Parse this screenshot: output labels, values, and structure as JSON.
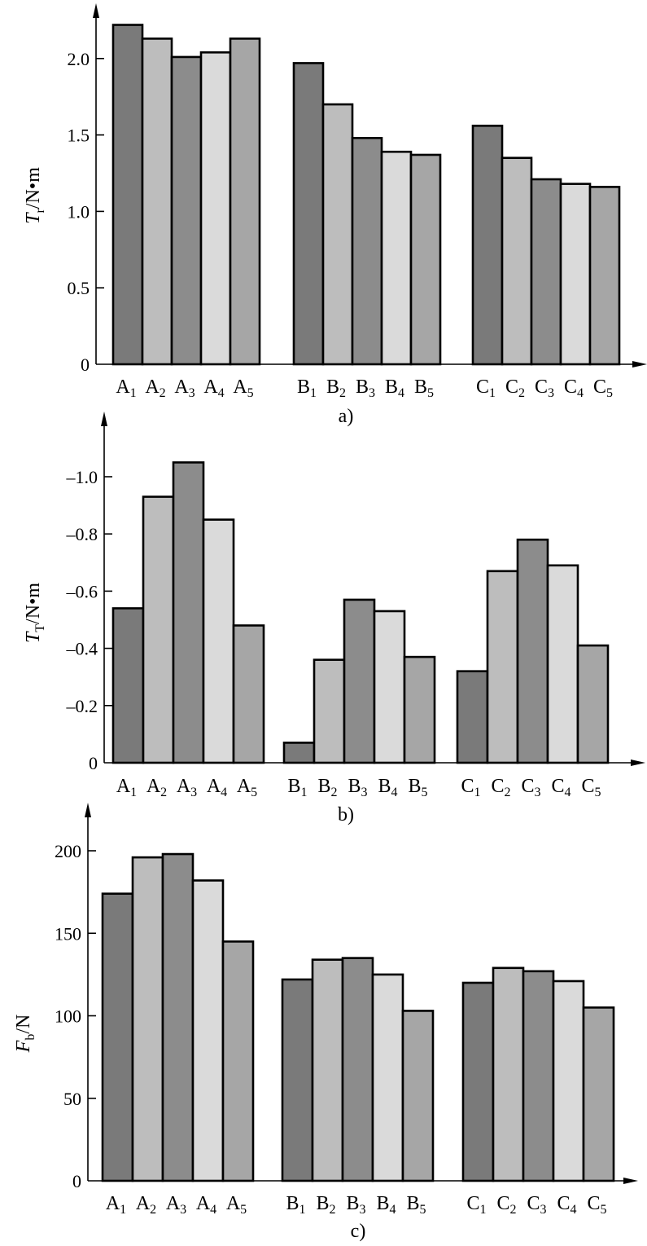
{
  "colors": {
    "bar_fills": [
      "#7a7a7a",
      "#bdbdbd",
      "#8c8c8c",
      "#dadada",
      "#a6a6a6"
    ]
  },
  "chart_data": [
    {
      "type": "bar",
      "panel_label": "a)",
      "ylabel": {
        "symbol": "T",
        "subscript": "r",
        "unit": "/N•m"
      },
      "ylim": [
        0,
        2.25
      ],
      "yticks": [
        0,
        0.5,
        1.0,
        1.5,
        2.0
      ],
      "ytick_labels": [
        "0",
        "0.5",
        "1.0",
        "1.5",
        "2.0"
      ],
      "grid": false,
      "groups": [
        {
          "categories": [
            {
              "letter": "A",
              "sub": "1"
            },
            {
              "letter": "A",
              "sub": "2"
            },
            {
              "letter": "A",
              "sub": "3"
            },
            {
              "letter": "A",
              "sub": "4"
            },
            {
              "letter": "A",
              "sub": "5"
            }
          ],
          "values": [
            2.22,
            2.13,
            2.01,
            2.04,
            2.13
          ]
        },
        {
          "categories": [
            {
              "letter": "B",
              "sub": "1"
            },
            {
              "letter": "B",
              "sub": "2"
            },
            {
              "letter": "B",
              "sub": "3"
            },
            {
              "letter": "B",
              "sub": "4"
            },
            {
              "letter": "B",
              "sub": "5"
            }
          ],
          "values": [
            1.97,
            1.7,
            1.48,
            1.39,
            1.37
          ]
        },
        {
          "categories": [
            {
              "letter": "C",
              "sub": "1"
            },
            {
              "letter": "C",
              "sub": "2"
            },
            {
              "letter": "C",
              "sub": "3"
            },
            {
              "letter": "C",
              "sub": "4"
            },
            {
              "letter": "C",
              "sub": "5"
            }
          ],
          "values": [
            1.56,
            1.35,
            1.21,
            1.18,
            1.16
          ]
        }
      ]
    },
    {
      "type": "bar",
      "panel_label": "b)",
      "ylabel": {
        "symbol": "T",
        "subscript": "T",
        "unit": "/N•m"
      },
      "ylim": [
        0,
        1.1
      ],
      "yticks": [
        0,
        0.2,
        0.4,
        0.6,
        0.8,
        1.0
      ],
      "ytick_labels": [
        "0",
        "–0.2",
        "–0.4",
        "–0.6",
        "–0.8",
        "–1.0"
      ],
      "grid": false,
      "groups": [
        {
          "categories": [
            {
              "letter": "A",
              "sub": "1"
            },
            {
              "letter": "A",
              "sub": "2"
            },
            {
              "letter": "A",
              "sub": "3"
            },
            {
              "letter": "A",
              "sub": "4"
            },
            {
              "letter": "A",
              "sub": "5"
            }
          ],
          "values": [
            0.54,
            0.93,
            1.05,
            0.85,
            0.48
          ]
        },
        {
          "categories": [
            {
              "letter": "B",
              "sub": "1"
            },
            {
              "letter": "B",
              "sub": "2"
            },
            {
              "letter": "B",
              "sub": "3"
            },
            {
              "letter": "B",
              "sub": "4"
            },
            {
              "letter": "B",
              "sub": "5"
            }
          ],
          "values": [
            0.07,
            0.36,
            0.57,
            0.53,
            0.37
          ]
        },
        {
          "categories": [
            {
              "letter": "C",
              "sub": "1"
            },
            {
              "letter": "C",
              "sub": "2"
            },
            {
              "letter": "C",
              "sub": "3"
            },
            {
              "letter": "C",
              "sub": "4"
            },
            {
              "letter": "C",
              "sub": "5"
            }
          ],
          "values": [
            0.32,
            0.67,
            0.78,
            0.69,
            0.41
          ]
        }
      ]
    },
    {
      "type": "bar",
      "panel_label": "c)",
      "ylabel": {
        "symbol": "F",
        "subscript": "b",
        "unit": "/N"
      },
      "ylim": [
        0,
        210
      ],
      "yticks": [
        0,
        50,
        100,
        150,
        200
      ],
      "ytick_labels": [
        "0",
        "50",
        "100",
        "150",
        "200"
      ],
      "grid": false,
      "groups": [
        {
          "categories": [
            {
              "letter": "A",
              "sub": "1"
            },
            {
              "letter": "A",
              "sub": "2"
            },
            {
              "letter": "A",
              "sub": "3"
            },
            {
              "letter": "A",
              "sub": "4"
            },
            {
              "letter": "A",
              "sub": "5"
            }
          ],
          "values": [
            174,
            196,
            198,
            182,
            145
          ]
        },
        {
          "categories": [
            {
              "letter": "B",
              "sub": "1"
            },
            {
              "letter": "B",
              "sub": "2"
            },
            {
              "letter": "B",
              "sub": "3"
            },
            {
              "letter": "B",
              "sub": "4"
            },
            {
              "letter": "B",
              "sub": "5"
            }
          ],
          "values": [
            122,
            134,
            135,
            125,
            103
          ]
        },
        {
          "categories": [
            {
              "letter": "C",
              "sub": "1"
            },
            {
              "letter": "C",
              "sub": "2"
            },
            {
              "letter": "C",
              "sub": "3"
            },
            {
              "letter": "C",
              "sub": "4"
            },
            {
              "letter": "C",
              "sub": "5"
            }
          ],
          "values": [
            120,
            129,
            127,
            121,
            105
          ]
        }
      ]
    }
  ]
}
